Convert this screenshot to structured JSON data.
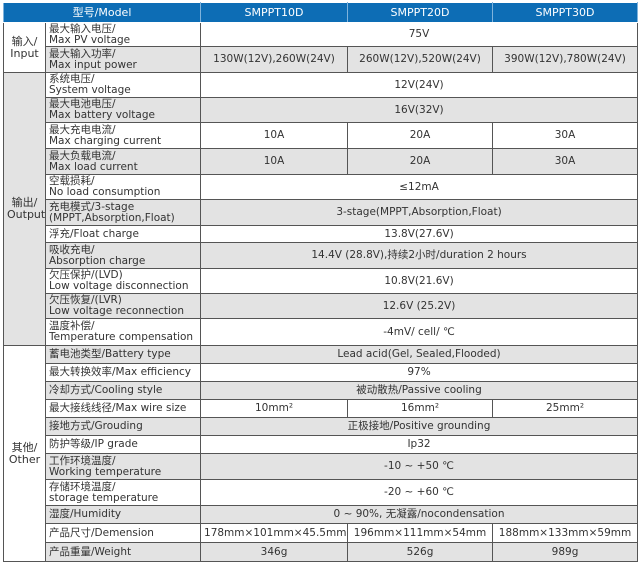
{
  "header": {
    "model": "型号/Model",
    "models": [
      "SMPPT10D",
      "SMPPT20D",
      "SMPPT30D"
    ]
  },
  "groups": [
    {
      "zh": "输入/",
      "en": "Input",
      "rows": [
        {
          "zh": "最大输入电压/",
          "en": "Max PV voltage",
          "values": [
            "75V"
          ]
        },
        {
          "zh": "最大输入功率/",
          "en": "Max input power",
          "values": [
            "130W(12V),260W(24V)",
            "260W(12V),520W(24V)",
            "390W(12V),780W(24V)"
          ]
        }
      ]
    },
    {
      "zh": "输出/",
      "en": "Output",
      "rows": [
        {
          "zh": "系统电压/",
          "en": "System voltage",
          "values": [
            "12V(24V)"
          ]
        },
        {
          "zh": "最大电池电压/",
          "en": "Max battery voltage",
          "values": [
            "16V(32V)"
          ]
        },
        {
          "zh": "最大充电电流/",
          "en": "Max charging current",
          "values": [
            "10A",
            "20A",
            "30A"
          ]
        },
        {
          "zh": "最大负载电流/",
          "en": "Max load current",
          "values": [
            "10A",
            "20A",
            "30A"
          ]
        },
        {
          "zh": "空载损耗/",
          "en": "No load consumption",
          "values": [
            "≤12mA"
          ]
        },
        {
          "zh": "充电模式/3-stage",
          "en": "(MPPT,Absorption,Float)",
          "values": [
            "3-stage(MPPT,Absorption,Float)"
          ]
        },
        {
          "zh": "浮充/Float charge",
          "en": "",
          "values": [
            "13.8V(27.6V)"
          ]
        },
        {
          "zh": "吸收充电/",
          "en": "Absorption charge",
          "values": [
            "14.4V (28.8V),持续2小时/duration 2 hours"
          ]
        },
        {
          "zh": "欠压保护/(LVD)",
          "en": "Low voltage disconnection",
          "values": [
            "10.8V(21.6V)"
          ]
        },
        {
          "zh": "欠压恢复/(LVR)",
          "en": "Low voltage reconnection",
          "values": [
            "12.6V (25.2V)"
          ]
        },
        {
          "zh": "温度补偿/",
          "en": "Temperature compensation",
          "values": [
            "-4mV/ cell/ ℃"
          ]
        }
      ]
    },
    {
      "zh": "其他/",
      "en": "Other",
      "rows": [
        {
          "zh": "蓄电池类型/Battery type",
          "en": "",
          "values": [
            "Lead acid(Gel, Sealed,Flooded)"
          ]
        },
        {
          "zh": "最大转换效率/Max efficiency",
          "en": "",
          "values": [
            "97%"
          ]
        },
        {
          "zh": "冷却方式/Cooling style",
          "en": "",
          "values": [
            "被动散热/Passive cooling"
          ]
        },
        {
          "zh": "最大接线线径/Max wire size",
          "en": "",
          "values": [
            "10mm²",
            "16mm²",
            "25mm²"
          ]
        },
        {
          "zh": "接地方式/Grouding",
          "en": "",
          "values": [
            "正极接地/Positive grounding"
          ]
        },
        {
          "zh": "防护等级/IP grade",
          "en": "",
          "values": [
            "Ip32"
          ]
        },
        {
          "zh": "工作环境温度/",
          "en": "Working temperature",
          "values": [
            "-10 ~ +50 ℃"
          ]
        },
        {
          "zh": "存储环境温度/",
          "en": "storage temperature",
          "values": [
            "-20 ~ +60 ℃"
          ]
        },
        {
          "zh": "湿度/Humidity",
          "en": "",
          "values": [
            "0 ~ 90%, 无凝露/nocondensation"
          ]
        },
        {
          "zh": "产品尺寸/Demension",
          "en": "",
          "values": [
            "178mm×101mm×45.5mm",
            "196mm×111mm×54mm",
            "188mm×133mm×59mm"
          ]
        },
        {
          "zh": "产品重量/Weight",
          "en": "",
          "values": [
            "346g",
            "526g",
            "989g"
          ]
        }
      ]
    }
  ],
  "colors": {
    "header": "#0d6db5",
    "shade": "#e3e3e3"
  }
}
